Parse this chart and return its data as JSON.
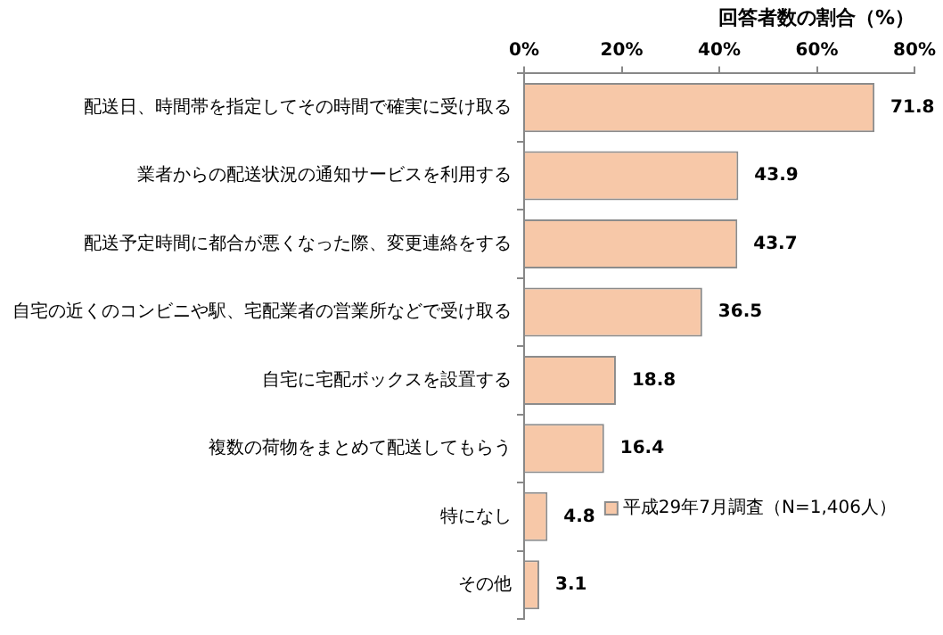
{
  "chart_data": {
    "type": "bar",
    "orientation": "horizontal",
    "xlabel": "回答者数の割合（%）",
    "categories": [
      "配送日、時間帯を指定してその時間で確実に受け取る",
      "業者からの配送状況の通知サービスを利用する",
      "配送予定時間に都合が悪くなった際、変更連絡をする",
      "自宅の近くのコンビニや駅、宅配業者の営業所などで受け取る",
      "自宅に宅配ボックスを設置する",
      "複数の荷物をまとめて配送してもらう",
      "特になし",
      "その他"
    ],
    "series": [
      {
        "name": "平成29年7月調査（N=1,406人）",
        "color": "#f7c8a8",
        "values": [
          71.8,
          43.9,
          43.7,
          36.5,
          18.8,
          16.4,
          4.8,
          3.1
        ]
      }
    ],
    "xlim": [
      0,
      80
    ],
    "xticks": [
      {
        "value": 0,
        "label": "0%"
      },
      {
        "value": 20,
        "label": "20%"
      },
      {
        "value": 40,
        "label": "40%"
      },
      {
        "value": 60,
        "label": "60%"
      },
      {
        "value": 80,
        "label": "80%"
      }
    ],
    "data_labels": true,
    "legend": "bottom right"
  }
}
